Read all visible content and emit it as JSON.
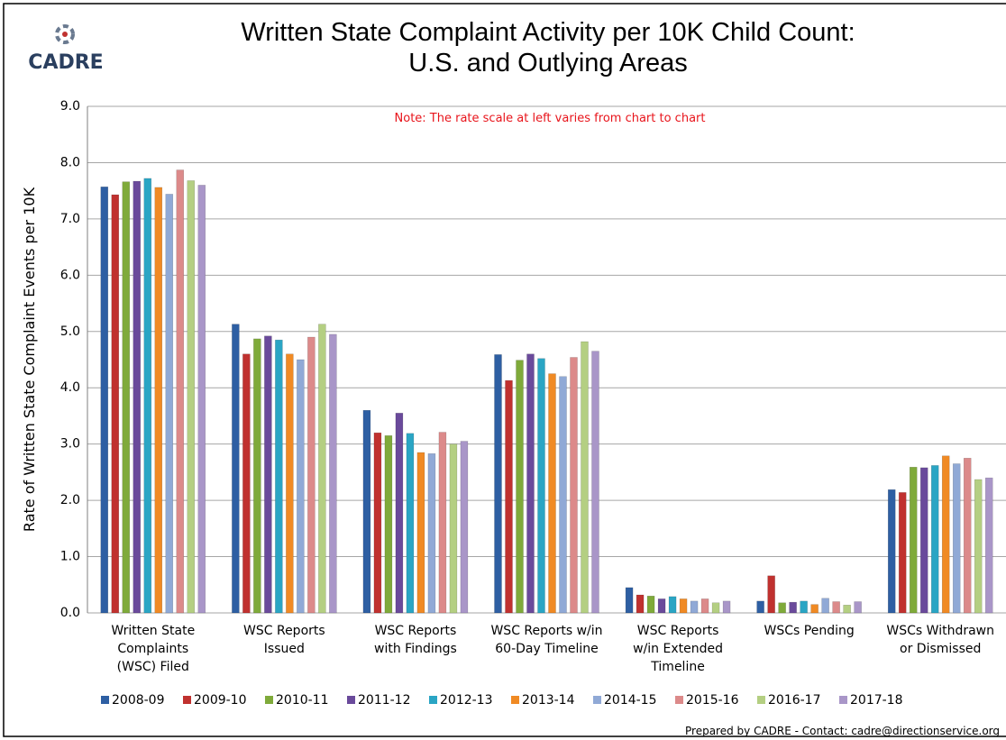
{
  "logo": "CADRE",
  "footer": "Prepared by CADRE - Contact: cadre@directionservice.org",
  "chart_data": {
    "type": "bar",
    "title": "Written State Complaint Activity per 10K Child Count:\nU.S. and Outlying Areas",
    "annotation": "Note:  The rate scale at left varies from chart to chart",
    "y_label": "Rate of Written State Complaint Events per 10K",
    "categories": [
      "Written State\nComplaints\n(WSC) Filed",
      "WSC Reports\nIssued",
      "WSC Reports\nwith Findings",
      "WSC Reports w/in\n60-Day Timeline",
      "WSC Reports\nw/in Extended\nTimeline",
      "WSCs Pending",
      "WSCs Withdrawn\nor Dismissed"
    ],
    "series": [
      {
        "name": "2008-09",
        "color": "#2e5fa3",
        "values": [
          7.57,
          5.13,
          3.6,
          4.59,
          0.45,
          0.21,
          2.19
        ]
      },
      {
        "name": "2009-10",
        "color": "#c0312f",
        "values": [
          7.43,
          4.6,
          3.2,
          4.13,
          0.32,
          0.66,
          2.14
        ]
      },
      {
        "name": "2010-11",
        "color": "#7faa3a",
        "values": [
          7.66,
          4.87,
          3.15,
          4.49,
          0.3,
          0.18,
          2.59
        ]
      },
      {
        "name": "2011-12",
        "color": "#6a4a9b",
        "values": [
          7.67,
          4.92,
          3.55,
          4.6,
          0.25,
          0.19,
          2.58
        ]
      },
      {
        "name": "2012-13",
        "color": "#2aa5c4",
        "values": [
          7.72,
          4.85,
          3.19,
          4.52,
          0.29,
          0.21,
          2.62
        ]
      },
      {
        "name": "2013-14",
        "color": "#f08a24",
        "values": [
          7.56,
          4.6,
          2.85,
          4.25,
          0.25,
          0.15,
          2.79
        ]
      },
      {
        "name": "2014-15",
        "color": "#90a9d6",
        "values": [
          7.44,
          4.5,
          2.83,
          4.2,
          0.21,
          0.26,
          2.65
        ]
      },
      {
        "name": "2015-16",
        "color": "#dc8a8a",
        "values": [
          7.87,
          4.9,
          3.21,
          4.54,
          0.25,
          0.2,
          2.75
        ]
      },
      {
        "name": "2016-17",
        "color": "#b4cf82",
        "values": [
          7.68,
          5.13,
          3.0,
          4.82,
          0.18,
          0.14,
          2.37
        ]
      },
      {
        "name": "2017-18",
        "color": "#a996c8",
        "values": [
          7.6,
          4.95,
          3.05,
          4.65,
          0.21,
          0.2,
          2.4
        ]
      }
    ],
    "ylim": [
      0,
      9
    ],
    "yticks": [
      {
        "value": 0,
        "label": "0.0"
      },
      {
        "value": 1,
        "label": "1.0"
      },
      {
        "value": 2,
        "label": "2.0"
      },
      {
        "value": 3,
        "label": "3.0"
      },
      {
        "value": 4,
        "label": "4.0"
      },
      {
        "value": 5,
        "label": "5.0"
      },
      {
        "value": 6,
        "label": "6.0"
      },
      {
        "value": 7,
        "label": "7.0"
      },
      {
        "value": 8,
        "label": "8.0"
      },
      {
        "value": 9,
        "label": "9.0"
      }
    ],
    "grid": true,
    "legend": "bottom"
  }
}
